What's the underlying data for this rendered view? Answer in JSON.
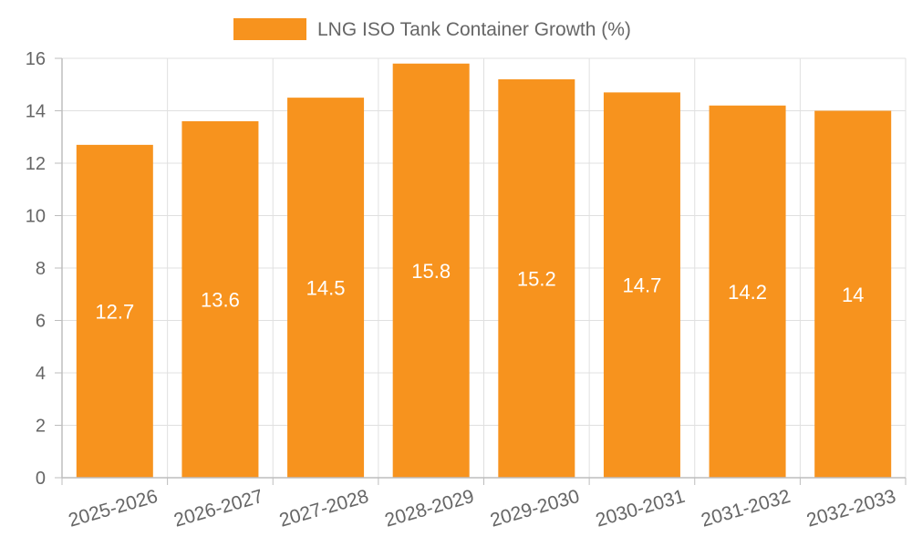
{
  "chart_data": {
    "type": "bar",
    "title": "",
    "xlabel": "",
    "ylabel": "",
    "categories": [
      "2025-2026",
      "2026-2027",
      "2027-2028",
      "2028-2029",
      "2029-2030",
      "2030-2031",
      "2031-2032",
      "2032-2033"
    ],
    "series": [
      {
        "name": "LNG ISO Tank Container Growth (%)",
        "values": [
          12.7,
          13.6,
          14.5,
          15.8,
          15.2,
          14.7,
          14.2,
          14
        ],
        "data_labels": [
          "12.7",
          "13.6",
          "14.5",
          "15.8",
          "15.2",
          "14.7",
          "14.2",
          "14"
        ],
        "color": "#f7931e"
      }
    ],
    "ylim": [
      0,
      16
    ],
    "yticks": [
      0,
      2,
      4,
      6,
      8,
      10,
      12,
      14,
      16
    ],
    "grid": true,
    "legend_position": "top-center"
  }
}
